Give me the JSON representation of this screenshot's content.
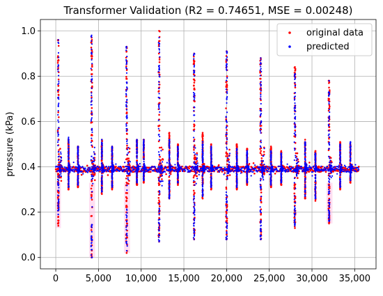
{
  "chart_data": {
    "type": "scatter",
    "title": "Transformer Validation (R2 =  0.74651, MSE =  0.00248)",
    "xlabel": "",
    "ylabel": "pressure (kPa)",
    "xlim": [
      -1800,
      37500
    ],
    "ylim": [
      -0.05,
      1.05
    ],
    "xticks": [
      0,
      5000,
      10000,
      15000,
      20000,
      25000,
      30000,
      35000
    ],
    "xtick_labels": [
      "0",
      "5,000",
      "10,000",
      "15,000",
      "20,000",
      "25,000",
      "30,000",
      "35,000"
    ],
    "yticks": [
      0.0,
      0.2,
      0.4,
      0.6,
      0.8,
      1.0
    ],
    "ytick_labels": [
      "0.0",
      "0.2",
      "0.4",
      "0.6",
      "0.8",
      "1.0"
    ],
    "grid": true,
    "legend_position": "top-right",
    "colors": {
      "original": "#ff0000",
      "predicted": "#0000ff"
    },
    "x_max": 35500,
    "baseline": 0.39,
    "series": [
      {
        "name": "original data",
        "peaks": [
          {
            "x": 300,
            "max": 0.96,
            "min": 0.14,
            "spread": 120
          },
          {
            "x": 1500,
            "max": 0.52,
            "min": 0.3,
            "spread": 60
          },
          {
            "x": 2600,
            "max": 0.49,
            "min": 0.31,
            "spread": 60
          },
          {
            "x": 4200,
            "max": 0.97,
            "min": 0.0,
            "spread": 140
          },
          {
            "x": 5400,
            "max": 0.52,
            "min": 0.28,
            "spread": 60
          },
          {
            "x": 6600,
            "max": 0.49,
            "min": 0.3,
            "spread": 60
          },
          {
            "x": 8300,
            "max": 0.93,
            "min": 0.02,
            "spread": 140
          },
          {
            "x": 9500,
            "max": 0.52,
            "min": 0.32,
            "spread": 60
          },
          {
            "x": 10300,
            "max": 0.52,
            "min": 0.33,
            "spread": 60
          },
          {
            "x": 12100,
            "max": 1.0,
            "min": 0.07,
            "spread": 150
          },
          {
            "x": 13300,
            "max": 0.55,
            "min": 0.26,
            "spread": 70
          },
          {
            "x": 14300,
            "max": 0.5,
            "min": 0.32,
            "spread": 60
          },
          {
            "x": 16200,
            "max": 0.9,
            "min": 0.08,
            "spread": 140
          },
          {
            "x": 17200,
            "max": 0.55,
            "min": 0.26,
            "spread": 70
          },
          {
            "x": 18200,
            "max": 0.5,
            "min": 0.3,
            "spread": 60
          },
          {
            "x": 20000,
            "max": 0.91,
            "min": 0.08,
            "spread": 140
          },
          {
            "x": 21200,
            "max": 0.5,
            "min": 0.3,
            "spread": 60
          },
          {
            "x": 22400,
            "max": 0.48,
            "min": 0.32,
            "spread": 60
          },
          {
            "x": 24000,
            "max": 0.88,
            "min": 0.08,
            "spread": 140
          },
          {
            "x": 25200,
            "max": 0.49,
            "min": 0.31,
            "spread": 60
          },
          {
            "x": 26400,
            "max": 0.47,
            "min": 0.32,
            "spread": 60
          },
          {
            "x": 28000,
            "max": 0.84,
            "min": 0.13,
            "spread": 140
          },
          {
            "x": 29200,
            "max": 0.52,
            "min": 0.26,
            "spread": 60
          },
          {
            "x": 30400,
            "max": 0.47,
            "min": 0.25,
            "spread": 60
          },
          {
            "x": 32000,
            "max": 0.78,
            "min": 0.15,
            "spread": 130
          },
          {
            "x": 33300,
            "max": 0.51,
            "min": 0.3,
            "spread": 60
          },
          {
            "x": 34500,
            "max": 0.5,
            "min": 0.33,
            "spread": 60
          }
        ]
      },
      {
        "name": "predicted",
        "peaks": [
          {
            "x": 300,
            "max": 0.96,
            "min": 0.19,
            "spread": 120
          },
          {
            "x": 1500,
            "max": 0.53,
            "min": 0.31,
            "spread": 60
          },
          {
            "x": 2600,
            "max": 0.49,
            "min": 0.32,
            "spread": 60
          },
          {
            "x": 4200,
            "max": 0.98,
            "min": 0.0,
            "spread": 140
          },
          {
            "x": 5400,
            "max": 0.52,
            "min": 0.29,
            "spread": 60
          },
          {
            "x": 6600,
            "max": 0.49,
            "min": 0.31,
            "spread": 60
          },
          {
            "x": 8300,
            "max": 0.93,
            "min": 0.03,
            "spread": 140
          },
          {
            "x": 9500,
            "max": 0.52,
            "min": 0.33,
            "spread": 60
          },
          {
            "x": 10300,
            "max": 0.52,
            "min": 0.34,
            "spread": 60
          },
          {
            "x": 12100,
            "max": 0.97,
            "min": 0.07,
            "spread": 150
          },
          {
            "x": 13300,
            "max": 0.52,
            "min": 0.26,
            "spread": 70
          },
          {
            "x": 14300,
            "max": 0.49,
            "min": 0.33,
            "spread": 60
          },
          {
            "x": 16200,
            "max": 0.9,
            "min": 0.08,
            "spread": 140
          },
          {
            "x": 17200,
            "max": 0.51,
            "min": 0.27,
            "spread": 70
          },
          {
            "x": 18200,
            "max": 0.49,
            "min": 0.31,
            "spread": 60
          },
          {
            "x": 20000,
            "max": 0.91,
            "min": 0.08,
            "spread": 140
          },
          {
            "x": 21200,
            "max": 0.48,
            "min": 0.31,
            "spread": 60
          },
          {
            "x": 22400,
            "max": 0.47,
            "min": 0.33,
            "spread": 60
          },
          {
            "x": 24000,
            "max": 0.88,
            "min": 0.08,
            "spread": 140
          },
          {
            "x": 25200,
            "max": 0.47,
            "min": 0.32,
            "spread": 60
          },
          {
            "x": 26400,
            "max": 0.46,
            "min": 0.33,
            "spread": 60
          },
          {
            "x": 28000,
            "max": 0.81,
            "min": 0.14,
            "spread": 140
          },
          {
            "x": 29200,
            "max": 0.51,
            "min": 0.27,
            "spread": 60
          },
          {
            "x": 30400,
            "max": 0.46,
            "min": 0.26,
            "spread": 60
          },
          {
            "x": 32000,
            "max": 0.78,
            "min": 0.16,
            "spread": 130
          },
          {
            "x": 33300,
            "max": 0.5,
            "min": 0.31,
            "spread": 60
          },
          {
            "x": 34500,
            "max": 0.51,
            "min": 0.34,
            "spread": 60
          }
        ]
      }
    ],
    "shaded_regions": [
      {
        "x_start": 0,
        "x_end": 600,
        "y_low": 0.13,
        "y_high": 0.33
      },
      {
        "x_start": 3900,
        "x_end": 4600,
        "y_low": 0.0,
        "y_high": 0.33
      },
      {
        "x_start": 8000,
        "x_end": 8700,
        "y_low": 0.02,
        "y_high": 0.33
      },
      {
        "x_start": 31700,
        "x_end": 32400,
        "y_low": 0.15,
        "y_high": 0.33
      }
    ]
  }
}
